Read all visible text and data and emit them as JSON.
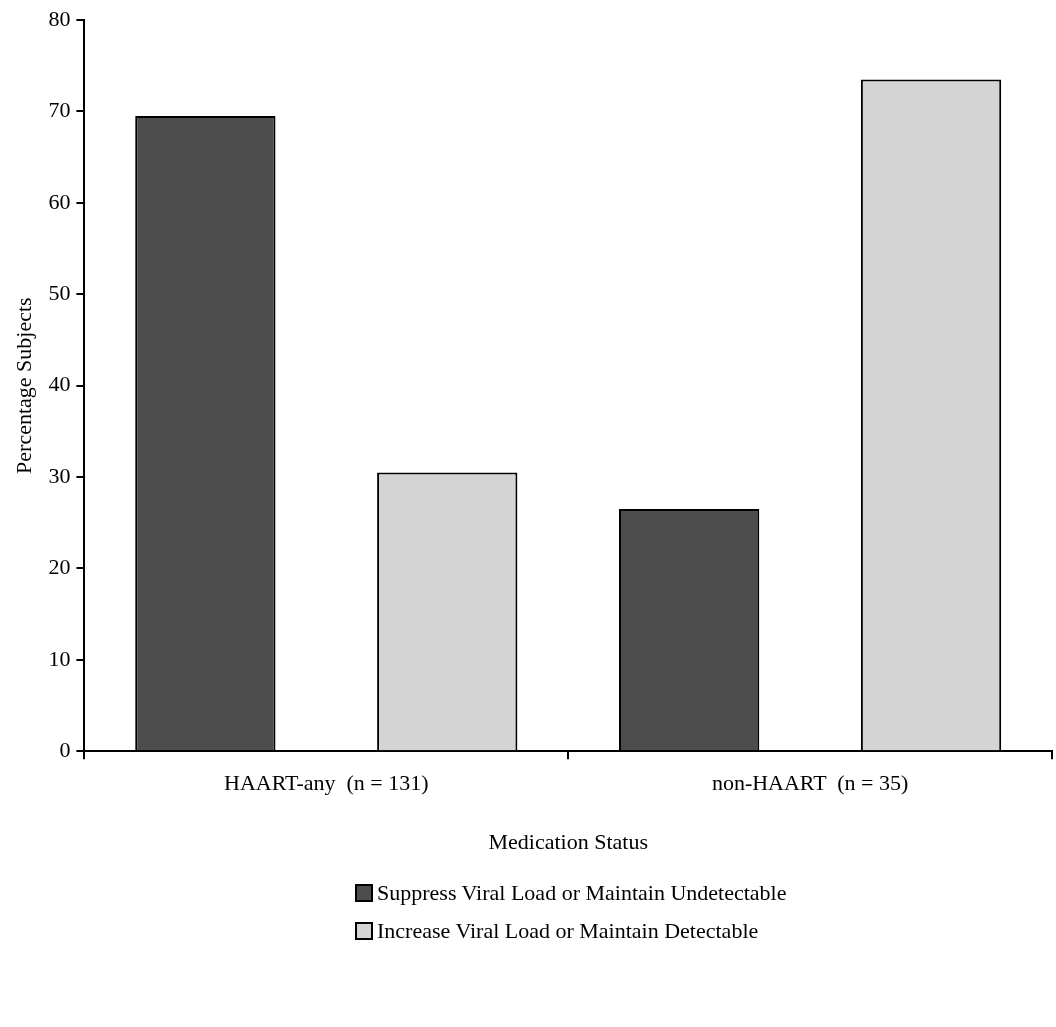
{
  "chart_data": {
    "type": "bar",
    "xlabel": "Medication Status",
    "ylabel": "Percentage Subjects",
    "categories": [
      "HAART-any  (n = 131)",
      "non-HAART  (n = 35)"
    ],
    "series": [
      {
        "name": "Suppress Viral Load or Maintain Undetectable",
        "color": "#4d4d4d",
        "values": [
          69.5,
          26.5
        ]
      },
      {
        "name": "Increase Viral Load or Maintain Detectable",
        "color": "#d4d4d4",
        "values": [
          30.5,
          73.5
        ]
      }
    ],
    "ylim": [
      0,
      80
    ],
    "yticks": [
      0,
      10,
      20,
      30,
      40,
      50,
      60,
      70,
      80
    ],
    "grid": false,
    "legend": "bottom"
  }
}
